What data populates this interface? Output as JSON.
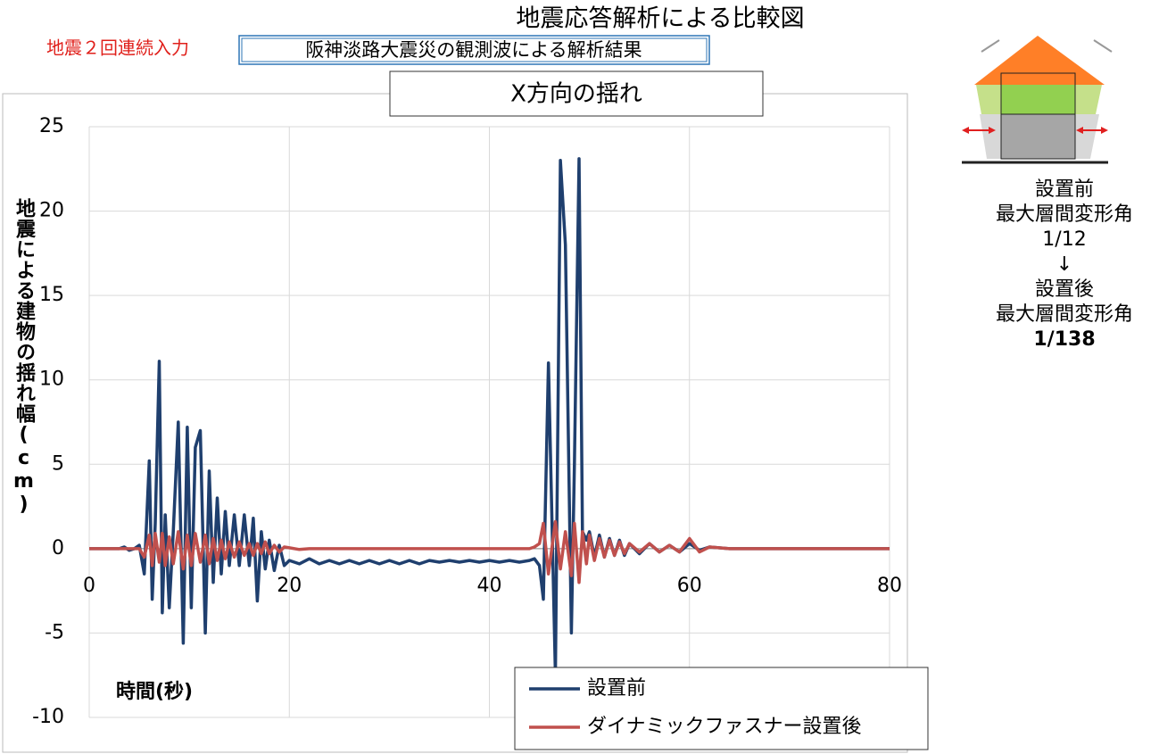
{
  "header": {
    "title": "地震応答解析による比較図",
    "label": "地震２回連続入力",
    "subtitle": "阪神淡路大震災の観測波による解析結果"
  },
  "chart_data": {
    "type": "line",
    "title": "X方向の揺れ",
    "x_label": "時間(秒)",
    "y_label": "地震による建物の揺れ幅(cm)",
    "x": [
      0,
      3,
      3.5,
      4,
      4.5,
      5,
      5.5,
      6,
      6.3,
      6.6,
      7,
      7.3,
      7.6,
      8,
      8.4,
      8.9,
      9.4,
      9.8,
      10.2,
      10.6,
      11.1,
      11.6,
      12,
      12.4,
      12.8,
      13.2,
      13.6,
      14,
      14.5,
      15,
      15.5,
      16,
      16.4,
      16.8,
      17.2,
      17.6,
      18,
      18.5,
      19,
      19.5,
      20,
      21,
      22,
      23,
      24,
      25,
      26,
      27,
      28,
      29,
      30,
      31,
      32,
      33,
      34,
      35,
      36,
      37,
      38,
      39,
      40,
      41,
      42,
      43,
      44,
      44.5,
      45,
      45.4,
      45.9,
      46.6,
      47.1,
      47.6,
      48.2,
      48.5,
      48.96,
      49.3,
      49.7,
      50,
      50.5,
      51,
      51.5,
      52,
      52.5,
      53,
      53.5,
      54,
      55,
      56,
      57,
      58,
      59,
      60,
      61,
      62,
      64,
      66,
      68,
      70,
      75,
      80
    ],
    "series": [
      {
        "name": "設置前",
        "color": "#1f3f6e",
        "values": [
          0,
          0,
          0.1,
          -0.1,
          0,
          0.2,
          -1.5,
          5.2,
          -3,
          1.5,
          11.1,
          -3.8,
          2,
          -3.5,
          1,
          7.5,
          -5.6,
          7.2,
          -3.5,
          6,
          7,
          -5,
          4.6,
          -2,
          3,
          -1.5,
          2.2,
          -1,
          2,
          -1,
          2,
          -1,
          1.8,
          -3.1,
          1,
          -1.2,
          0.5,
          -1.3,
          0.2,
          -1,
          -0.7,
          -0.9,
          -0.6,
          -0.9,
          -0.7,
          -0.9,
          -0.7,
          -0.9,
          -0.7,
          -0.9,
          -0.7,
          -0.9,
          -0.7,
          -0.9,
          -0.7,
          -0.8,
          -0.7,
          -0.8,
          -0.7,
          -0.8,
          -0.7,
          -0.8,
          -0.7,
          -0.8,
          -0.7,
          -0.6,
          -1,
          -3,
          11,
          -7.5,
          23,
          18,
          -5,
          5,
          23.1,
          1,
          0.5,
          1,
          -0.5,
          0.8,
          -0.5,
          0.6,
          -0.4,
          0.5,
          -0.4,
          0.3,
          -0.3,
          0.3,
          -0.2,
          0.2,
          -0.2,
          0.3,
          -0.1,
          0.1,
          0,
          0,
          0,
          0,
          0,
          0
        ]
      },
      {
        "name": "ダイナミックファスナー設置後",
        "color": "#c0504d",
        "values": [
          0,
          0,
          0,
          0,
          0,
          0,
          -0.5,
          0.8,
          -1,
          0.9,
          -0.8,
          0.9,
          -1,
          0.7,
          -0.9,
          1,
          -1.2,
          0.8,
          -1,
          0.9,
          -0.8,
          0.8,
          -0.9,
          0.6,
          -0.7,
          0.5,
          -0.6,
          0.4,
          -0.5,
          0.4,
          -0.4,
          0.3,
          -0.4,
          0.3,
          -0.3,
          0.4,
          -0.3,
          0.2,
          -0.2,
          0.1,
          0.05,
          -0.05,
          0,
          0,
          0,
          0,
          0,
          0,
          0,
          0,
          0,
          0,
          0,
          0,
          0,
          0,
          0,
          0,
          0,
          0,
          0,
          0,
          0,
          0,
          0,
          0.1,
          0.3,
          1.5,
          -1.5,
          1.6,
          -1.2,
          1,
          -1.6,
          1.5,
          -2,
          1,
          -0.9,
          0.8,
          -0.7,
          0.6,
          -0.5,
          0.5,
          -0.4,
          0.4,
          -0.3,
          0.3,
          -0.2,
          0.3,
          -0.2,
          0.2,
          -0.2,
          0.6,
          -0.2,
          0.1,
          0,
          0,
          0,
          0,
          0,
          0
        ]
      }
    ],
    "xlim": [
      0,
      80
    ],
    "xticks": [
      0,
      20,
      40,
      60,
      80
    ],
    "ylim": [
      -10,
      25
    ],
    "yticks": [
      -10,
      -5,
      0,
      5,
      10,
      15,
      20,
      25
    ],
    "grid": true
  },
  "side_panel": {
    "lines": [
      "設置前",
      "最大層間変形角",
      "1/12",
      "↓",
      "設置後",
      "最大層間変形角",
      "1/138"
    ]
  }
}
